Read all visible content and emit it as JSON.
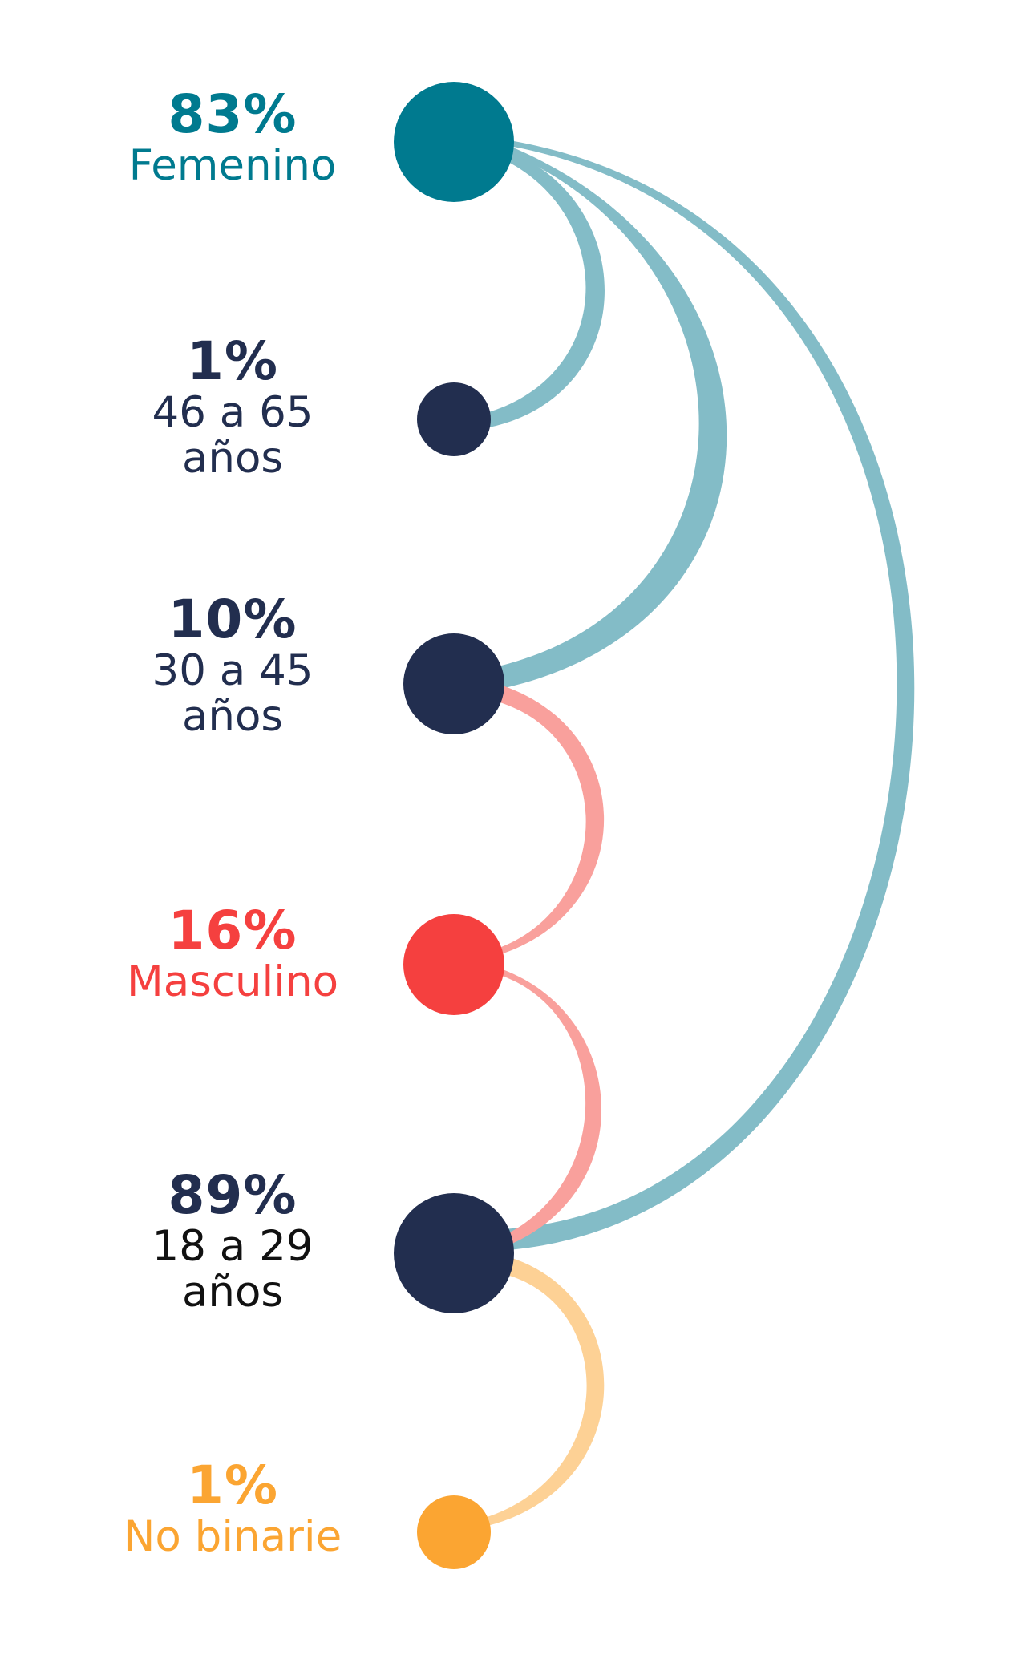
{
  "colors": {
    "femenino": "#007A8F",
    "masculino": "#F5403F",
    "no_binarie": "#FBA532",
    "age": "#222E4F",
    "link_femenino": "#83BCC7",
    "link_masculino": "#F9A09C",
    "link_no_binarie": "#FDD195"
  },
  "nodes": {
    "femenino": {
      "pct": "83%",
      "label": "Femenino"
    },
    "age_46_65": {
      "pct": "1%",
      "label_line1": "46 a 65",
      "label_line2": "años"
    },
    "age_30_45": {
      "pct": "10%",
      "label_line1": "30 a 45",
      "label_line2": "años"
    },
    "masculino": {
      "pct": "16%",
      "label": "Masculino"
    },
    "age_18_29": {
      "pct": "89%",
      "label_line1": "18 a 29",
      "label_line2": "años"
    },
    "no_binarie": {
      "pct": "1%",
      "label": "No binarie"
    }
  },
  "links": [
    {
      "from": "femenino",
      "to": "age_46_65",
      "color": "link_femenino"
    },
    {
      "from": "femenino",
      "to": "age_30_45",
      "color": "link_femenino"
    },
    {
      "from": "femenino",
      "to": "age_18_29",
      "color": "link_femenino"
    },
    {
      "from": "masculino",
      "to": "age_30_45",
      "color": "link_masculino"
    },
    {
      "from": "masculino",
      "to": "age_18_29",
      "color": "link_masculino"
    },
    {
      "from": "no_binarie",
      "to": "age_18_29",
      "color": "link_no_binarie"
    }
  ]
}
